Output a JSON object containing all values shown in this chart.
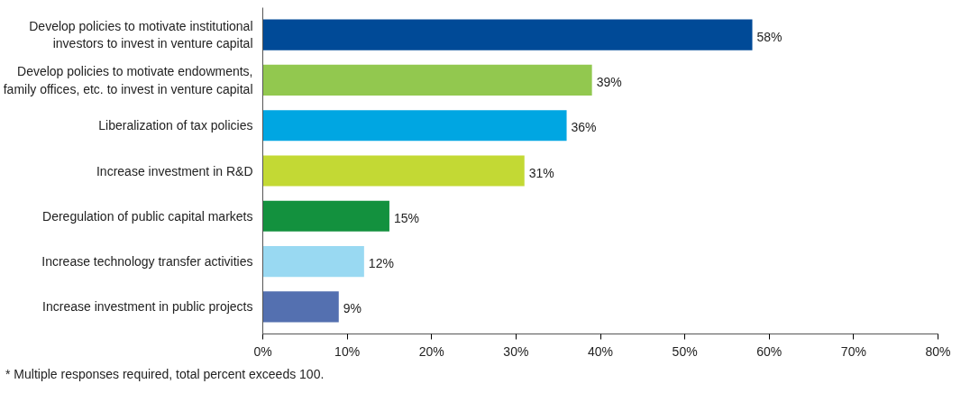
{
  "chart_data": {
    "type": "bar",
    "orientation": "horizontal",
    "categories": [
      "Develop policies to motivate institutional\ninvestors to invest in venture capital",
      "Develop policies to motivate endowments,\nfamily offices, etc. to invest in venture capital",
      "Liberalization of tax policies",
      "Increase investment in R&D",
      "Deregulation of public capital markets",
      "Increase technology transfer activities",
      "Increase investment in public projects"
    ],
    "values": [
      58,
      39,
      36,
      31,
      15,
      12,
      9
    ],
    "colors": [
      "#004a97",
      "#92c84f",
      "#00a6e2",
      "#c3d934",
      "#13913e",
      "#99d9f2",
      "#5470b0"
    ],
    "value_labels": [
      "58%",
      "39%",
      "36%",
      "31%",
      "15%",
      "12%",
      "9%"
    ],
    "xlim": [
      0,
      80
    ],
    "xticks": [
      {
        "value": 0,
        "label": "0%"
      },
      {
        "value": 10,
        "label": "10%"
      },
      {
        "value": 20,
        "label": "20%"
      },
      {
        "value": 30,
        "label": "30%"
      },
      {
        "value": 40,
        "label": "40%"
      },
      {
        "value": 50,
        "label": "50%"
      },
      {
        "value": 60,
        "label": "60%"
      },
      {
        "value": 70,
        "label": "70%"
      },
      {
        "value": 80,
        "label": "80%"
      }
    ],
    "grid": false,
    "annotations": [
      "* Multiple responses required, total percent exceeds 100."
    ]
  }
}
